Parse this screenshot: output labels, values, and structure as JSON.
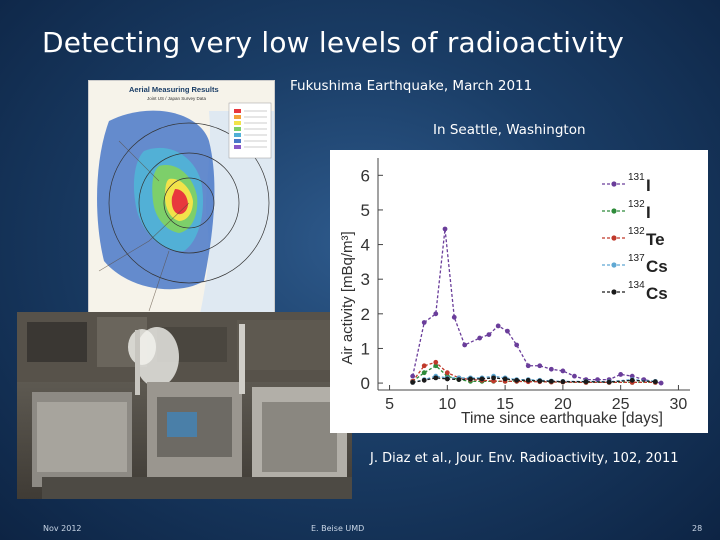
{
  "slide": {
    "title": "Detecting very low levels of radioactivity",
    "caption_fukushima": "Fukushima Earthquake, March 2011",
    "caption_seattle": "In Seattle, Washington",
    "reference": "J. Diaz et al., Jour. Env. Radioactivity, 102, 2011",
    "footer_date": "Nov 2012",
    "footer_author": "E. Beise UMD",
    "footer_page": "28"
  },
  "map": {
    "title": "Aerial Measuring Results",
    "subtitle": "Joint US / Japan Survey Data"
  },
  "chart_data": {
    "type": "line",
    "xlabel": "Time since earthquake [days]",
    "ylabel": "Air activity [mBq/m³]",
    "xlim": [
      4,
      31
    ],
    "ylim": [
      -0.2,
      6.5
    ],
    "x_ticks": [
      "5",
      "10",
      "15",
      "20",
      "25",
      "30"
    ],
    "y_ticks": [
      "0",
      "1",
      "2",
      "3",
      "4",
      "5",
      "6"
    ],
    "grid": false,
    "legend_position": "right",
    "series": [
      {
        "name": "131I",
        "mass": "131",
        "element": "I",
        "color": "#6a3d9a",
        "x": [
          7,
          8,
          9,
          9.8,
          10.6,
          11.5,
          12.8,
          13.6,
          14.4,
          15.2,
          16,
          17,
          18,
          19,
          20,
          21,
          22,
          23,
          24,
          25,
          26,
          27,
          28.5
        ],
        "y": [
          0.2,
          1.75,
          2.0,
          4.45,
          1.9,
          1.1,
          1.3,
          1.4,
          1.65,
          1.5,
          1.1,
          0.5,
          0.5,
          0.4,
          0.35,
          0.2,
          0.1,
          0.1,
          0.1,
          0.25,
          0.2,
          0.1,
          0.0
        ]
      },
      {
        "name": "132I",
        "mass": "132",
        "element": "I",
        "color": "#2e8b3a",
        "x": [
          7,
          8,
          9,
          10,
          11,
          12,
          13,
          14,
          15,
          16,
          17,
          18,
          19,
          20,
          22,
          24,
          26,
          28
        ],
        "y": [
          0.05,
          0.3,
          0.5,
          0.2,
          0.1,
          0.05,
          0.05,
          0.05,
          0.05,
          0.05,
          0.05,
          0.05,
          0.03,
          0.03,
          0.02,
          0.02,
          0.02,
          0.02
        ]
      },
      {
        "name": "132Te",
        "mass": "132",
        "element": "Te",
        "color": "#c0392b",
        "x": [
          7,
          8,
          9,
          10,
          11,
          12,
          13,
          14,
          15,
          16,
          17,
          18,
          19,
          20,
          22,
          24,
          26,
          28
        ],
        "y": [
          0.05,
          0.5,
          0.6,
          0.3,
          0.15,
          0.1,
          0.08,
          0.06,
          0.05,
          0.05,
          0.04,
          0.04,
          0.03,
          0.03,
          0.02,
          0.02,
          0.02,
          0.02
        ]
      },
      {
        "name": "137Cs",
        "mass": "137",
        "element": "Cs",
        "color": "#5fa8d3",
        "x": [
          7,
          8,
          9,
          10,
          11,
          12,
          13,
          14,
          15,
          16,
          17,
          18,
          19,
          20,
          22,
          24,
          26,
          28
        ],
        "y": [
          0.02,
          0.1,
          0.2,
          0.15,
          0.15,
          0.15,
          0.15,
          0.2,
          0.15,
          0.1,
          0.1,
          0.08,
          0.06,
          0.05,
          0.05,
          0.04,
          0.1,
          0.05
        ]
      },
      {
        "name": "134Cs",
        "mass": "134",
        "element": "Cs",
        "color": "#1a1a1a",
        "x": [
          7,
          8,
          9,
          10,
          11,
          12,
          13,
          14,
          15,
          16,
          17,
          18,
          19,
          20,
          22,
          24,
          26,
          28
        ],
        "y": [
          0.02,
          0.08,
          0.15,
          0.12,
          0.1,
          0.12,
          0.12,
          0.15,
          0.12,
          0.08,
          0.08,
          0.06,
          0.05,
          0.04,
          0.04,
          0.03,
          0.08,
          0.04
        ]
      }
    ]
  }
}
